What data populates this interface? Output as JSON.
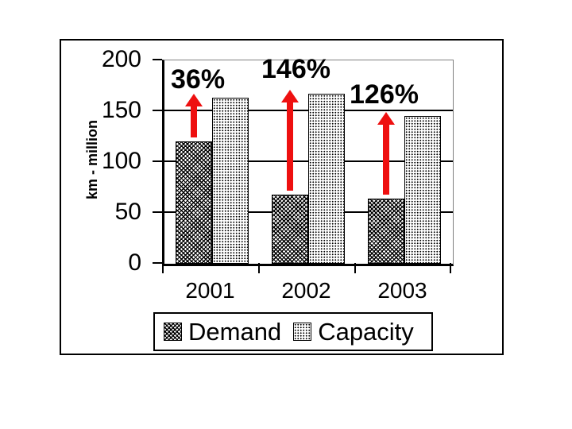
{
  "chart_data": {
    "type": "bar",
    "title": "",
    "categories": [
      "2001",
      "2002",
      "2003"
    ],
    "series": [
      {
        "name": "Demand",
        "values": [
          120,
          68,
          64
        ]
      },
      {
        "name": "Capacity",
        "values": [
          163,
          167,
          145
        ]
      }
    ],
    "annotations": [
      {
        "label": "36%",
        "category": "2001"
      },
      {
        "label": "146%",
        "category": "2002"
      },
      {
        "label": "126%",
        "category": "2003"
      }
    ],
    "xlabel": "",
    "ylabel": "km - million",
    "ylim": [
      0,
      200
    ],
    "yticks": [
      "0",
      "50",
      "100",
      "150",
      "200"
    ],
    "grid": true,
    "legend_position": "bottom",
    "colors": {
      "arrow": "#ee1010",
      "pattern_ink": "#000000",
      "background": "#ffffff",
      "plot_border_gray": "#808080"
    }
  }
}
